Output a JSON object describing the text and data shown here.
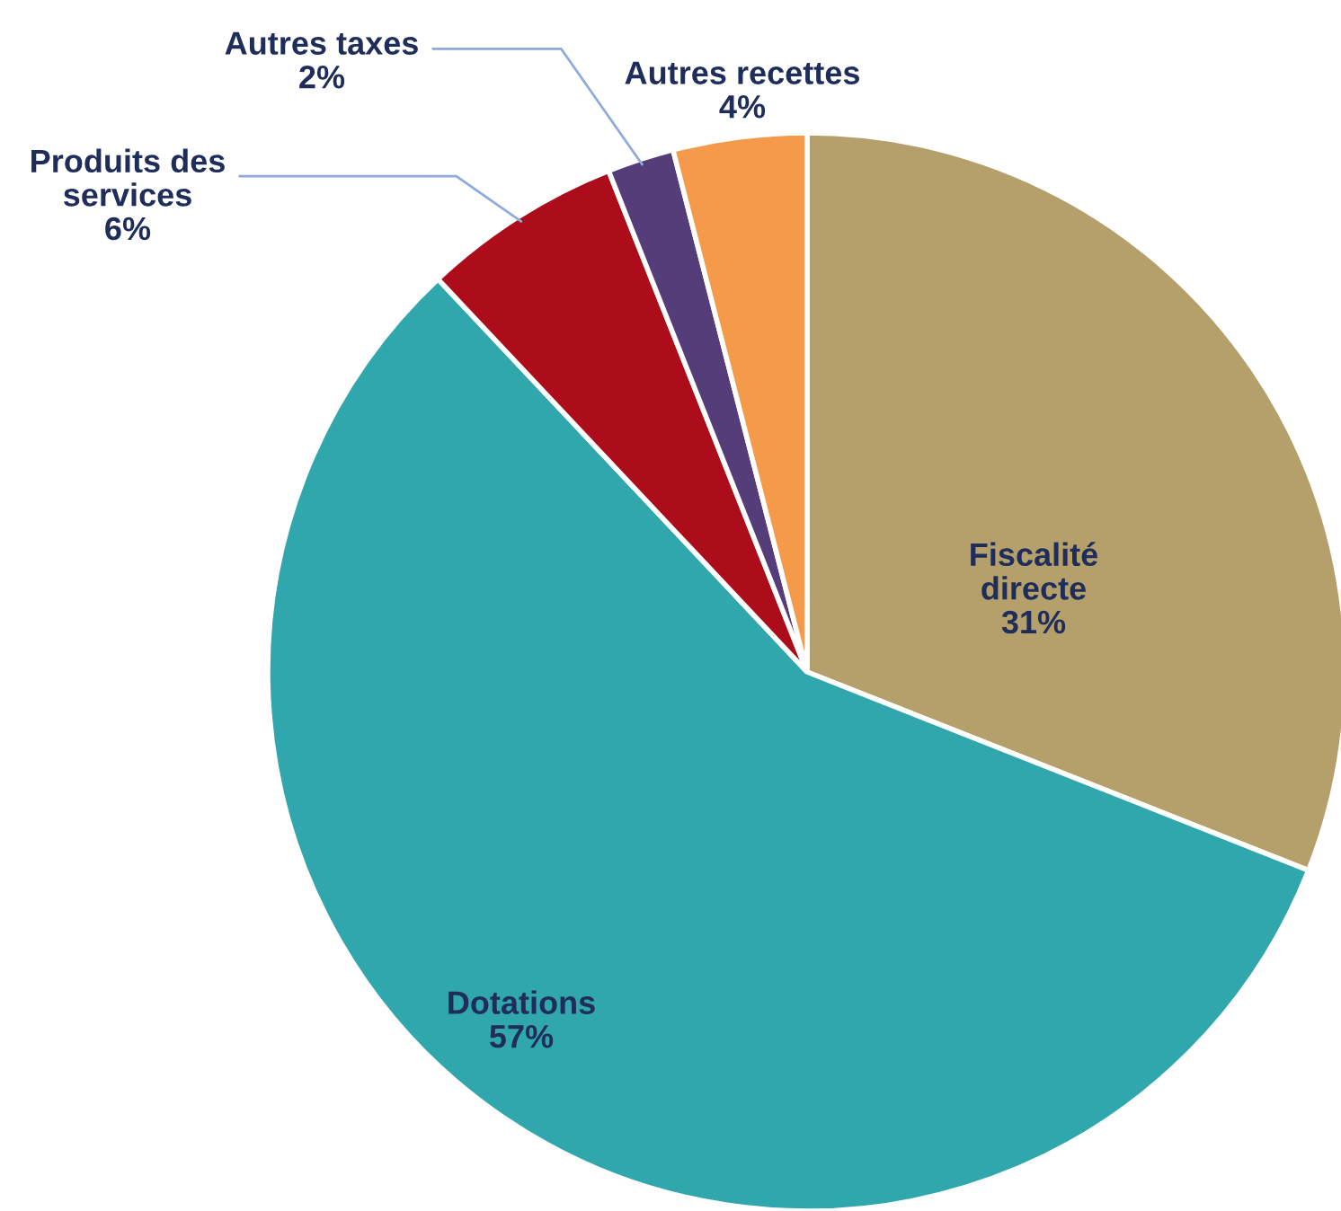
{
  "chart_data": {
    "type": "pie",
    "categories": [
      "Fiscalité directe",
      "Dotations",
      "Produits des services",
      "Autres taxes",
      "Autres recettes"
    ],
    "values": [
      31,
      57,
      6,
      2,
      4
    ],
    "value_labels": [
      "31%",
      "57%",
      "6%",
      "2%",
      "4%"
    ],
    "colors": [
      "#b5a06b",
      "#30a7ad",
      "#ad0c1a",
      "#553d7a",
      "#f59a4a"
    ]
  }
}
